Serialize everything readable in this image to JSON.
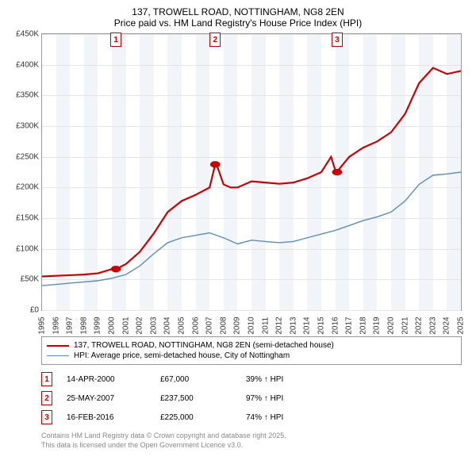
{
  "title": "137, TROWELL ROAD, NOTTINGHAM, NG8 2EN",
  "subtitle": "Price paid vs. HM Land Registry's House Price Index (HPI)",
  "chart": {
    "type": "line",
    "background_color": "#ffffff",
    "grid_color": "#e5e5e5",
    "band_color": "#e8eef5",
    "ylim": [
      0,
      450
    ],
    "ytick_step": 50,
    "y_ticks": [
      "£0",
      "£50K",
      "£100K",
      "£150K",
      "£200K",
      "£250K",
      "£300K",
      "£350K",
      "£400K",
      "£450K"
    ],
    "xlim": [
      1995,
      2025
    ],
    "x_ticks": [
      "1995",
      "1996",
      "1997",
      "1998",
      "1999",
      "2000",
      "2001",
      "2002",
      "2003",
      "2004",
      "2005",
      "2006",
      "2007",
      "2008",
      "2009",
      "2010",
      "2011",
      "2012",
      "2013",
      "2014",
      "2015",
      "2016",
      "2017",
      "2018",
      "2019",
      "2020",
      "2021",
      "2022",
      "2023",
      "2024",
      "2025"
    ],
    "series": [
      {
        "name": "137, TROWELL ROAD, NOTTINGHAM, NG8 2EN (semi-detached house)",
        "color": "#cc0000",
        "width": 2.2,
        "data": [
          [
            1995,
            55
          ],
          [
            1996,
            56
          ],
          [
            1997,
            57
          ],
          [
            1998,
            58
          ],
          [
            1999,
            60
          ],
          [
            2000,
            67
          ],
          [
            2000.3,
            67
          ],
          [
            2001,
            75
          ],
          [
            2002,
            95
          ],
          [
            2003,
            125
          ],
          [
            2004,
            160
          ],
          [
            2005,
            178
          ],
          [
            2006,
            188
          ],
          [
            2007,
            200
          ],
          [
            2007.4,
            237.5
          ],
          [
            2007.5,
            237.5
          ],
          [
            2008,
            205
          ],
          [
            2008.5,
            200
          ],
          [
            2009,
            200
          ],
          [
            2010,
            210
          ],
          [
            2011,
            208
          ],
          [
            2012,
            206
          ],
          [
            2013,
            208
          ],
          [
            2014,
            215
          ],
          [
            2015,
            225
          ],
          [
            2015.7,
            250
          ],
          [
            2016,
            228
          ],
          [
            2016.1,
            225
          ],
          [
            2017,
            250
          ],
          [
            2018,
            265
          ],
          [
            2019,
            275
          ],
          [
            2020,
            290
          ],
          [
            2021,
            320
          ],
          [
            2022,
            370
          ],
          [
            2023,
            395
          ],
          [
            2024,
            385
          ],
          [
            2025,
            390
          ]
        ],
        "markers": [
          [
            2000.29,
            67
          ],
          [
            2007.4,
            237.5
          ],
          [
            2016.13,
            225
          ]
        ]
      },
      {
        "name": "HPI: Average price, semi-detached house, City of Nottingham",
        "color": "#5b8db8",
        "width": 1.4,
        "data": [
          [
            1995,
            40
          ],
          [
            1996,
            42
          ],
          [
            1997,
            44
          ],
          [
            1998,
            46
          ],
          [
            1999,
            48
          ],
          [
            2000,
            52
          ],
          [
            2001,
            58
          ],
          [
            2002,
            72
          ],
          [
            2003,
            92
          ],
          [
            2004,
            110
          ],
          [
            2005,
            118
          ],
          [
            2006,
            122
          ],
          [
            2007,
            126
          ],
          [
            2008,
            118
          ],
          [
            2009,
            108
          ],
          [
            2010,
            114
          ],
          [
            2011,
            112
          ],
          [
            2012,
            110
          ],
          [
            2013,
            112
          ],
          [
            2014,
            118
          ],
          [
            2015,
            124
          ],
          [
            2016,
            130
          ],
          [
            2017,
            138
          ],
          [
            2018,
            146
          ],
          [
            2019,
            152
          ],
          [
            2020,
            160
          ],
          [
            2021,
            178
          ],
          [
            2022,
            205
          ],
          [
            2023,
            220
          ],
          [
            2024,
            222
          ],
          [
            2025,
            225
          ]
        ]
      }
    ],
    "event_markers": [
      {
        "num": "1",
        "x": 2000.29
      },
      {
        "num": "2",
        "x": 2007.4
      },
      {
        "num": "3",
        "x": 2016.13
      }
    ]
  },
  "legend": [
    {
      "label": "137, TROWELL ROAD, NOTTINGHAM, NG8 2EN (semi-detached house)",
      "color": "#cc0000",
      "width": 2.2
    },
    {
      "label": "HPI: Average price, semi-detached house, City of Nottingham",
      "color": "#5b8db8",
      "width": 1.4
    }
  ],
  "events": [
    {
      "num": "1",
      "date": "14-APR-2000",
      "price": "£67,000",
      "hpi": "39% ↑ HPI"
    },
    {
      "num": "2",
      "date": "25-MAY-2007",
      "price": "£237,500",
      "hpi": "97% ↑ HPI"
    },
    {
      "num": "3",
      "date": "16-FEB-2016",
      "price": "£225,000",
      "hpi": "74% ↑ HPI"
    }
  ],
  "attribution": {
    "line1": "Contains HM Land Registry data © Crown copyright and database right 2025.",
    "line2": "This data is licensed under the Open Government Licence v3.0."
  }
}
